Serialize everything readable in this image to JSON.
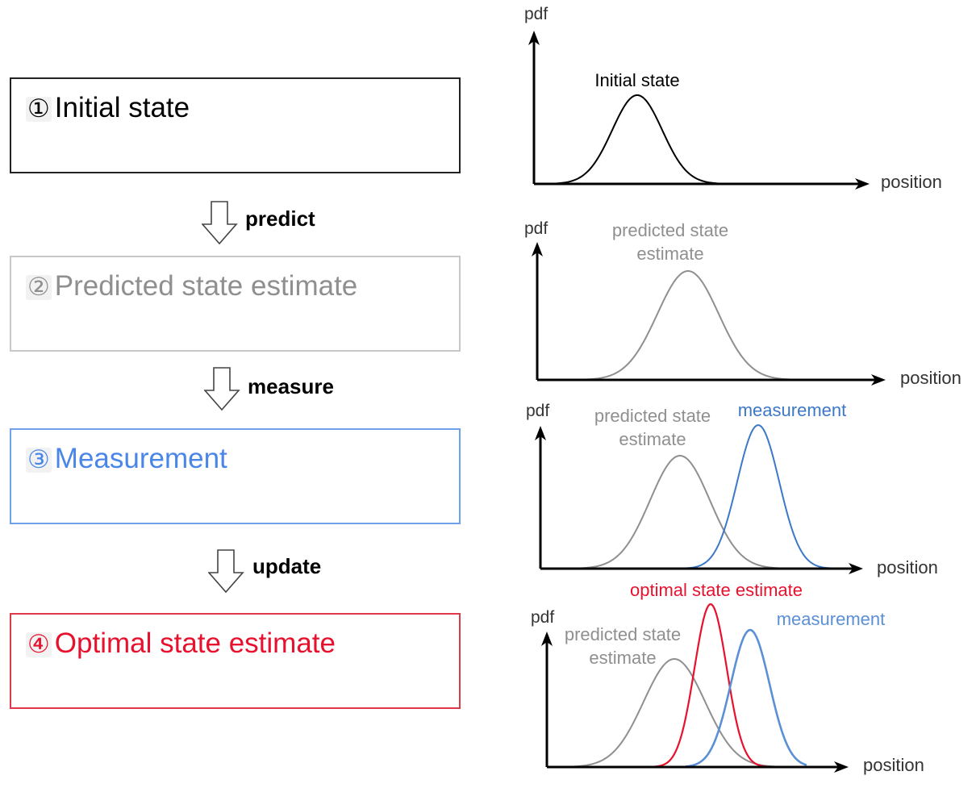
{
  "steps": [
    {
      "number": "①",
      "label": "Initial state",
      "color": "#000000",
      "border": "#222222"
    },
    {
      "number": "②",
      "label": "Predicted state estimate",
      "color": "#8f8f8f",
      "border": "#c8c8c8"
    },
    {
      "number": "③",
      "label": "Measurement",
      "color": "#4a86e8",
      "border": "#6fa0ea"
    },
    {
      "number": "④",
      "label": "Optimal state estimate",
      "color": "#e8112d",
      "border": "#e03a4a"
    }
  ],
  "transitions": [
    "predict",
    "measure",
    "update"
  ],
  "panels": [
    {
      "y_axis_label": "pdf",
      "x_axis_label": "position",
      "curves": [
        {
          "label": "Initial state",
          "label_lines": [
            "Initial state"
          ],
          "color": "#000000"
        }
      ]
    },
    {
      "y_axis_label": "pdf",
      "x_axis_label": "position",
      "curves": [
        {
          "label": "predicted state estimate",
          "label_lines": [
            "predicted state",
            "estimate"
          ],
          "color": "#8f8f8f"
        }
      ]
    },
    {
      "y_axis_label": "pdf",
      "x_axis_label": "position",
      "curves": [
        {
          "label": "predicted state estimate",
          "label_lines": [
            "predicted state",
            "estimate"
          ],
          "color": "#8f8f8f"
        },
        {
          "label": "measurement",
          "label_lines": [
            "measurement"
          ],
          "color": "#3d78c7"
        }
      ]
    },
    {
      "y_axis_label": "pdf",
      "x_axis_label": "position",
      "curves": [
        {
          "label": "predicted state estimate",
          "label_lines": [
            "predicted state",
            "estimate"
          ],
          "color": "#8f8f8f"
        },
        {
          "label": "optimal state estimate",
          "label_lines": [
            "optimal state estimate"
          ],
          "color": "#e8112d"
        },
        {
          "label": "measurement",
          "label_lines": [
            "measurement"
          ],
          "color": "#5b8fd6"
        }
      ]
    }
  ]
}
